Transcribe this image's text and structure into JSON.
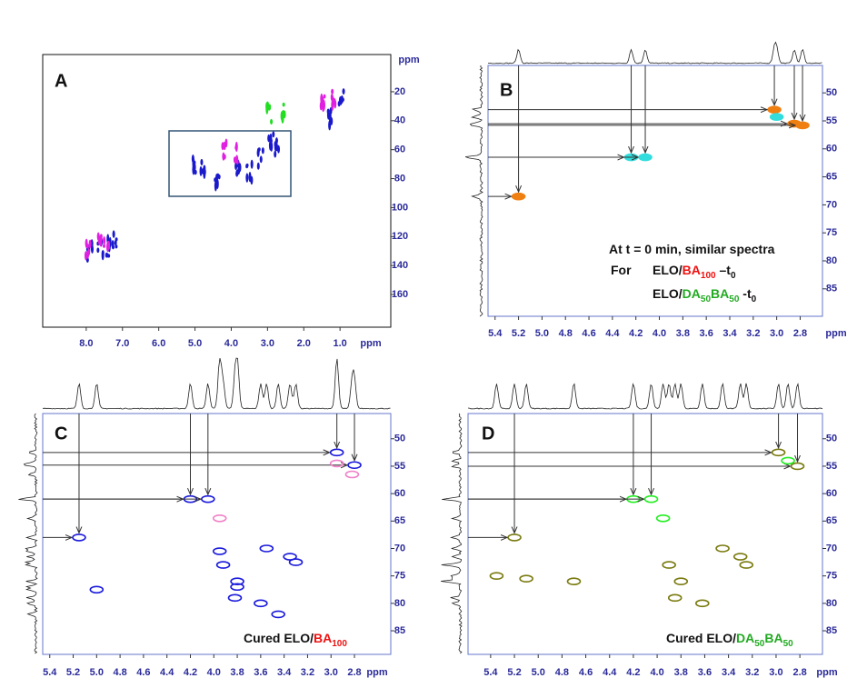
{
  "chart_data": [
    {
      "type": "scatter",
      "label": "A",
      "xlabel": "ppm",
      "ylabel": "ppm",
      "xlim": [
        9.2,
        -0.4
      ],
      "ylim": [
        -5.7,
        182.6
      ],
      "xticks": [
        {
          "value": 8,
          "label": "8.0"
        },
        {
          "value": 7,
          "label": "7.0"
        },
        {
          "value": 6,
          "label": "6.0"
        },
        {
          "value": 5,
          "label": "5.0"
        },
        {
          "value": 4,
          "label": "4.0"
        },
        {
          "value": 3,
          "label": "3.0"
        },
        {
          "value": 2,
          "label": "2.0"
        },
        {
          "value": 1,
          "label": "1.0"
        }
      ],
      "yticks": [
        20,
        40,
        60,
        80,
        100,
        120,
        140,
        160
      ],
      "series": [
        {
          "color": "#1a1acc",
          "x": [
            0.95,
            1.3,
            2.9,
            2.75,
            7.9,
            7.6,
            7.4,
            7.2,
            4.8,
            4.4,
            3.8,
            3.5,
            5.0,
            3.2
          ],
          "y": [
            23,
            38,
            55,
            58,
            130,
            128,
            128,
            122,
            72,
            79,
            74,
            76,
            70,
            66
          ]
        },
        {
          "color": "#e020e0",
          "x": [
            1.2,
            1.5,
            7.95,
            7.65,
            7.45,
            4.2,
            3.9
          ],
          "y": [
            25,
            25,
            128,
            126,
            125,
            61,
            63
          ]
        },
        {
          "color": "#22dd22",
          "x": [
            2.95,
            2.6
          ],
          "y": [
            35,
            33
          ]
        }
      ]
    },
    {
      "type": "scatter",
      "label": "B",
      "xlabel": "ppm",
      "xlim": [
        5.46,
        2.61
      ],
      "ylim": [
        45.1,
        89.9
      ],
      "xticks": [
        5.4,
        5.2,
        {
          "value": 5,
          "label": "5.0"
        },
        4.8,
        4.6,
        4.4,
        4.2,
        {
          "value": 4,
          "label": "4.0"
        },
        3.8,
        3.6,
        3.4,
        3.2,
        {
          "value": 3,
          "label": "3.0"
        },
        2.8
      ],
      "yticks": [
        50,
        55,
        60,
        65,
        70,
        75,
        80,
        85
      ],
      "series": [
        {
          "color": "#f07f12",
          "arrows": true,
          "x": [
            5.2,
            3.02,
            2.85,
            2.78
          ],
          "y": [
            68.5,
            53,
            55.5,
            55.8
          ]
        },
        {
          "color": "#33dddd",
          "arrows": true,
          "x": [
            4.24,
            4.12
          ],
          "y": [
            61.5,
            61.5
          ]
        },
        {
          "color": "#33dddd",
          "x": [
            3.0
          ],
          "y": [
            54.3
          ]
        }
      ],
      "annotations": [
        [
          {
            "text": "At t = 0 min, similar spectra"
          }
        ],
        [
          {
            "text": "For"
          }
        ],
        [
          {
            "text": "ELO/"
          },
          {
            "text": "BA",
            "color": "#ee1111"
          },
          {
            "text": "100",
            "color": "#ee1111",
            "sub": true
          },
          {
            "text": " –t"
          },
          {
            "text": "0",
            "sub": true
          }
        ],
        [
          {
            "text": "ELO/"
          },
          {
            "text": "DA",
            "color": "#22aa22"
          },
          {
            "text": "50",
            "color": "#22aa22",
            "sub": true
          },
          {
            "text": "BA",
            "color": "#22aa22"
          },
          {
            "text": "50",
            "color": "#22aa22",
            "sub": true
          },
          {
            "text": " -t"
          },
          {
            "text": "0",
            "sub": true
          }
        ]
      ]
    },
    {
      "type": "scatter",
      "label": "C",
      "xlabel": "ppm",
      "xlim": [
        5.46,
        2.49
      ],
      "ylim": [
        45.4,
        89.3
      ],
      "xticks": [
        5.4,
        5.2,
        {
          "value": 5,
          "label": "5.0"
        },
        4.8,
        4.6,
        4.4,
        4.2,
        {
          "value": 4,
          "label": "4.0"
        },
        3.8,
        3.6,
        3.4,
        3.2,
        {
          "value": 3,
          "label": "3.0"
        },
        2.8
      ],
      "yticks": [
        50,
        55,
        60,
        65,
        70,
        75,
        80,
        85
      ],
      "series": [
        {
          "color": "#1a1add",
          "arrows": true,
          "x": [
            5.15,
            2.95,
            2.8,
            4.2,
            4.05
          ],
          "y": [
            68,
            52.5,
            54.8,
            61,
            61
          ]
        },
        {
          "color": "#1a1add",
          "x": [
            3.3,
            3.55,
            3.95,
            3.92,
            3.8,
            3.8,
            3.82,
            3.6,
            3.45,
            5.0,
            3.35
          ],
          "y": [
            72.5,
            70,
            70.5,
            73,
            76,
            77,
            79,
            80,
            82,
            77.5,
            71.5
          ]
        },
        {
          "color": "#f080c8",
          "x": [
            3.95,
            2.95,
            2.82
          ],
          "y": [
            64.5,
            54.5,
            56.5
          ]
        }
      ],
      "annotations": [
        [
          {
            "text": "Cured ELO/"
          },
          {
            "text": "BA",
            "color": "#ee1111"
          },
          {
            "text": "100",
            "color": "#ee1111",
            "sub": true
          }
        ]
      ]
    },
    {
      "type": "scatter",
      "label": "D",
      "xlabel": "ppm",
      "xlim": [
        5.59,
        2.61
      ],
      "ylim": [
        45.4,
        89.3
      ],
      "xticks": [
        5.4,
        5.2,
        {
          "value": 5,
          "label": "5.0"
        },
        4.8,
        4.6,
        4.4,
        4.2,
        {
          "value": 4,
          "label": "4.0"
        },
        3.8,
        3.6,
        3.4,
        3.2,
        {
          "value": 3,
          "label": "3.0"
        },
        2.8
      ],
      "yticks": [
        50,
        55,
        60,
        65,
        70,
        75,
        80,
        85
      ],
      "series": [
        {
          "color": "#7a7a10",
          "arrows": true,
          "x": [
            5.2,
            2.98,
            2.82
          ],
          "y": [
            68,
            52.5,
            55
          ]
        },
        {
          "color": "#22ee22",
          "arrows": true,
          "x": [
            4.2,
            4.05
          ],
          "y": [
            61,
            61
          ]
        },
        {
          "color": "#7a7a10",
          "x": [
            5.35,
            5.1,
            4.7,
            3.9,
            3.8,
            3.45,
            3.3,
            3.25,
            3.85,
            3.62
          ],
          "y": [
            75,
            75.5,
            76,
            73,
            76,
            70,
            71.5,
            73,
            79,
            80
          ]
        },
        {
          "color": "#22ee22",
          "x": [
            3.95,
            2.9
          ],
          "y": [
            64.5,
            54
          ]
        }
      ],
      "annotations": [
        [
          {
            "text": "Cured ELO/"
          },
          {
            "text": "DA",
            "color": "#22aa22"
          },
          {
            "text": "50",
            "color": "#22aa22",
            "sub": true
          },
          {
            "text": "BA",
            "color": "#22aa22"
          },
          {
            "text": "50",
            "color": "#22aa22",
            "sub": true
          }
        ]
      ]
    }
  ]
}
